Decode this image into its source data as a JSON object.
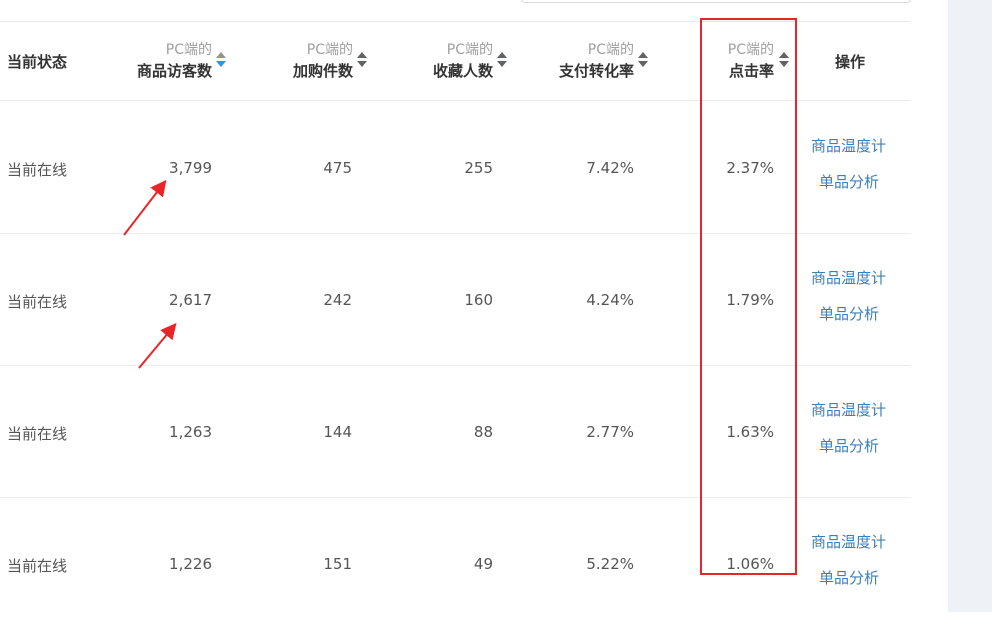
{
  "header": {
    "status": "当前状态",
    "action": "操作",
    "columns": [
      {
        "sub": "PC端的",
        "main": "商品访客数"
      },
      {
        "sub": "PC端的",
        "main": "加购件数"
      },
      {
        "sub": "PC端的",
        "main": "收藏人数"
      },
      {
        "sub": "PC端的",
        "main": "支付转化率"
      },
      {
        "sub": "PC端的",
        "main": "点击率"
      }
    ]
  },
  "rows": [
    {
      "status": "当前在线",
      "visitors": "3,799",
      "cart": "475",
      "fav": "255",
      "conv": "7.42%",
      "ctr": "2.37%",
      "action1": "商品温度计",
      "action2": "单品分析"
    },
    {
      "status": "当前在线",
      "visitors": "2,617",
      "cart": "242",
      "fav": "160",
      "conv": "4.24%",
      "ctr": "1.79%",
      "action1": "商品温度计",
      "action2": "单品分析"
    },
    {
      "status": "当前在线",
      "visitors": "1,263",
      "cart": "144",
      "fav": "88",
      "conv": "2.77%",
      "ctr": "1.63%",
      "action1": "商品温度计",
      "action2": "单品分析"
    },
    {
      "status": "当前在线",
      "visitors": "1,226",
      "cart": "151",
      "fav": "49",
      "conv": "5.22%",
      "ctr": "1.06%",
      "action1": "商品温度计",
      "action2": "单品分析"
    }
  ],
  "colors": {
    "highlight": "#e8262a",
    "link": "#3d7fb8",
    "sort_active": "#3a8ee6"
  }
}
